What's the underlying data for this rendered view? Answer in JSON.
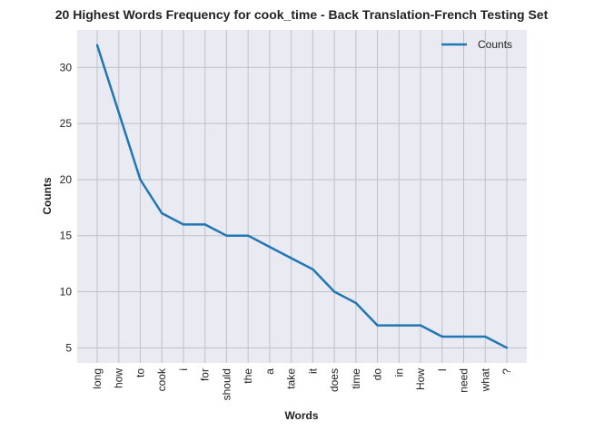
{
  "chart_data": {
    "type": "line",
    "title": "20 Highest Words Frequency for cook_time - Back Translation-French Testing Set",
    "xlabel": "Words",
    "ylabel": "Counts",
    "categories": [
      "long",
      "how",
      "to",
      "cook",
      "i",
      "for",
      "should",
      "the",
      "a",
      "take",
      "it",
      "does",
      "time",
      "do",
      "in",
      "How",
      "I",
      "need",
      "what",
      "?"
    ],
    "series": [
      {
        "name": "Counts",
        "values": [
          32,
          26,
          20,
          17,
          16,
          16,
          15,
          15,
          14,
          13,
          12,
          10,
          9,
          7,
          7,
          7,
          6,
          6,
          6,
          5
        ],
        "color": "#1f77b4"
      }
    ],
    "yticks": [
      5,
      10,
      15,
      20,
      25,
      30
    ],
    "ylim": [
      3.65,
      33.35
    ],
    "grid": true,
    "legend": "top-right",
    "plot_background": "#eaeaf2",
    "grid_color": "#c0c0c8"
  }
}
